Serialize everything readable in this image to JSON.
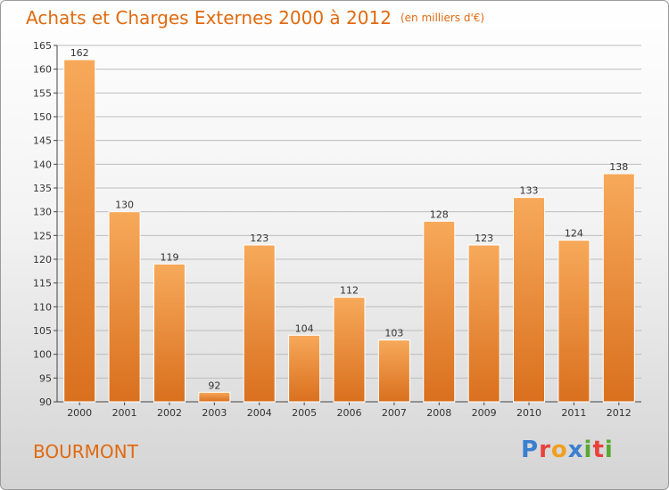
{
  "header": {
    "title": "Achats et Charges Externes 2000 à 2012",
    "unit": "(en milliers d'€)"
  },
  "footer": {
    "commune": "BOURMONT",
    "logo_letters": [
      "P",
      "r",
      "o",
      "x",
      "i",
      "t",
      "i"
    ],
    "logo_colors": [
      "#3b7fd0",
      "#e8423c",
      "#f0a020",
      "#3b7fd0",
      "#5aa832",
      "#e8423c",
      "#5aa832"
    ]
  },
  "colors": {
    "bar_top": "#f7a95a",
    "bar_bottom": "#d9701e",
    "title": "#e06a10",
    "grid": "#bdbdbd",
    "axis": "#444444"
  },
  "chart_data": {
    "type": "bar",
    "categories": [
      "2000",
      "2001",
      "2002",
      "2003",
      "2004",
      "2005",
      "2006",
      "2007",
      "2008",
      "2009",
      "2010",
      "2011",
      "2012"
    ],
    "values": [
      162,
      130,
      119,
      92,
      123,
      104,
      112,
      103,
      128,
      123,
      133,
      124,
      138
    ],
    "ylim": [
      90,
      165
    ],
    "yticks": [
      90,
      95,
      100,
      105,
      110,
      115,
      120,
      125,
      130,
      135,
      140,
      145,
      150,
      155,
      160,
      165
    ],
    "grid": true,
    "data_labels": true
  }
}
